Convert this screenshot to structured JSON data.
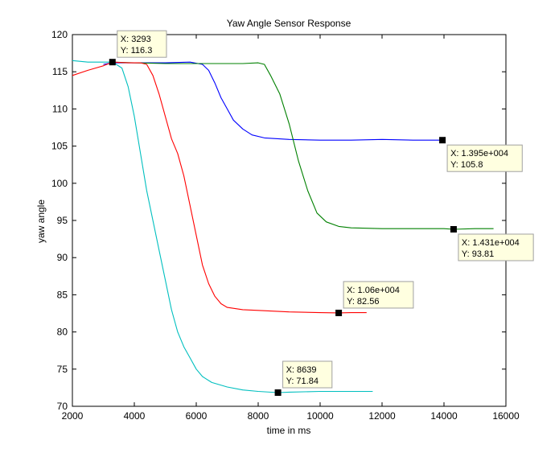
{
  "chart_data": {
    "type": "line",
    "title": "Yaw Angle Sensor Response",
    "xlabel": "time in ms",
    "ylabel": "yaw angle",
    "xlim": [
      2000,
      16000
    ],
    "ylim": [
      70,
      120
    ],
    "xticks": [
      2000,
      4000,
      6000,
      8000,
      10000,
      12000,
      14000,
      16000
    ],
    "yticks": [
      70,
      75,
      80,
      85,
      90,
      95,
      100,
      105,
      110,
      115,
      120
    ],
    "grid": false,
    "legend": "none",
    "series": [
      {
        "color": "#0000ff",
        "points": [
          [
            3000,
            116.0
          ],
          [
            3300,
            116.2
          ],
          [
            4000,
            116.2
          ],
          [
            5000,
            116.2
          ],
          [
            5800,
            116.3
          ],
          [
            6200,
            116.0
          ],
          [
            6400,
            115.2
          ],
          [
            6600,
            113.5
          ],
          [
            6800,
            111.5
          ],
          [
            7000,
            110.0
          ],
          [
            7200,
            108.5
          ],
          [
            7500,
            107.3
          ],
          [
            7800,
            106.5
          ],
          [
            8200,
            106.1
          ],
          [
            9000,
            105.9
          ],
          [
            10000,
            105.8
          ],
          [
            11000,
            105.8
          ],
          [
            12000,
            105.9
          ],
          [
            13000,
            105.8
          ],
          [
            13950,
            105.8
          ]
        ]
      },
      {
        "color": "#008000",
        "points": [
          [
            3250,
            116.3
          ],
          [
            4000,
            116.2
          ],
          [
            5000,
            116.1
          ],
          [
            6000,
            116.1
          ],
          [
            7000,
            116.1
          ],
          [
            7500,
            116.1
          ],
          [
            8000,
            116.2
          ],
          [
            8200,
            116.0
          ],
          [
            8400,
            114.5
          ],
          [
            8700,
            112.0
          ],
          [
            9000,
            108.0
          ],
          [
            9300,
            103.0
          ],
          [
            9600,
            99.0
          ],
          [
            9900,
            96.0
          ],
          [
            10200,
            94.8
          ],
          [
            10600,
            94.2
          ],
          [
            11000,
            94.0
          ],
          [
            12000,
            93.9
          ],
          [
            13000,
            93.9
          ],
          [
            14000,
            93.9
          ],
          [
            14310,
            93.81
          ],
          [
            15000,
            93.9
          ],
          [
            15600,
            93.9
          ]
        ]
      },
      {
        "color": "#ff0000",
        "points": [
          [
            2000,
            114.5
          ],
          [
            2500,
            115.2
          ],
          [
            3000,
            115.8
          ],
          [
            3293,
            116.3
          ],
          [
            3800,
            116.2
          ],
          [
            4200,
            116.2
          ],
          [
            4400,
            116.0
          ],
          [
            4600,
            114.5
          ],
          [
            4800,
            112.0
          ],
          [
            5000,
            109.0
          ],
          [
            5200,
            106.0
          ],
          [
            5400,
            104.0
          ],
          [
            5600,
            101.0
          ],
          [
            5800,
            97.0
          ],
          [
            6000,
            93.0
          ],
          [
            6200,
            89.0
          ],
          [
            6400,
            86.5
          ],
          [
            6600,
            84.8
          ],
          [
            6800,
            83.8
          ],
          [
            7000,
            83.3
          ],
          [
            7500,
            83.0
          ],
          [
            8000,
            82.9
          ],
          [
            9000,
            82.7
          ],
          [
            10000,
            82.6
          ],
          [
            10600,
            82.56
          ],
          [
            11000,
            82.6
          ],
          [
            11500,
            82.6
          ]
        ]
      },
      {
        "color": "#00bfbf",
        "points": [
          [
            2000,
            116.5
          ],
          [
            2500,
            116.3
          ],
          [
            3000,
            116.3
          ],
          [
            3300,
            116.3
          ],
          [
            3600,
            115.5
          ],
          [
            3800,
            113.0
          ],
          [
            4000,
            109.0
          ],
          [
            4200,
            104.0
          ],
          [
            4400,
            99.0
          ],
          [
            4600,
            95.0
          ],
          [
            4800,
            91.0
          ],
          [
            5000,
            87.0
          ],
          [
            5200,
            83.0
          ],
          [
            5400,
            80.0
          ],
          [
            5600,
            78.0
          ],
          [
            5800,
            76.5
          ],
          [
            6000,
            75.0
          ],
          [
            6200,
            74.0
          ],
          [
            6500,
            73.2
          ],
          [
            7000,
            72.6
          ],
          [
            7500,
            72.2
          ],
          [
            8000,
            72.0
          ],
          [
            8639,
            71.84
          ],
          [
            9000,
            71.9
          ],
          [
            10000,
            72.0
          ],
          [
            11000,
            72.0
          ],
          [
            11700,
            72.0
          ]
        ]
      }
    ],
    "datatips": [
      {
        "x_text": "X: 3293",
        "y_text": "Y: 116.3",
        "at": [
          3293,
          116.3
        ],
        "side": "upper-right"
      },
      {
        "x_text": "X: 1.395e+004",
        "y_text": "Y: 105.8",
        "at": [
          13950,
          105.8
        ],
        "side": "lower-right"
      },
      {
        "x_text": "X: 1.431e+004",
        "y_text": "Y: 93.81",
        "at": [
          14310,
          93.81
        ],
        "side": "lower-right"
      },
      {
        "x_text": "X: 1.06e+004",
        "y_text": "Y: 82.56",
        "at": [
          10600,
          82.56
        ],
        "side": "upper-right"
      },
      {
        "x_text": "X: 8639",
        "y_text": "Y: 71.84",
        "at": [
          8639,
          71.84
        ],
        "side": "upper-right"
      }
    ]
  }
}
